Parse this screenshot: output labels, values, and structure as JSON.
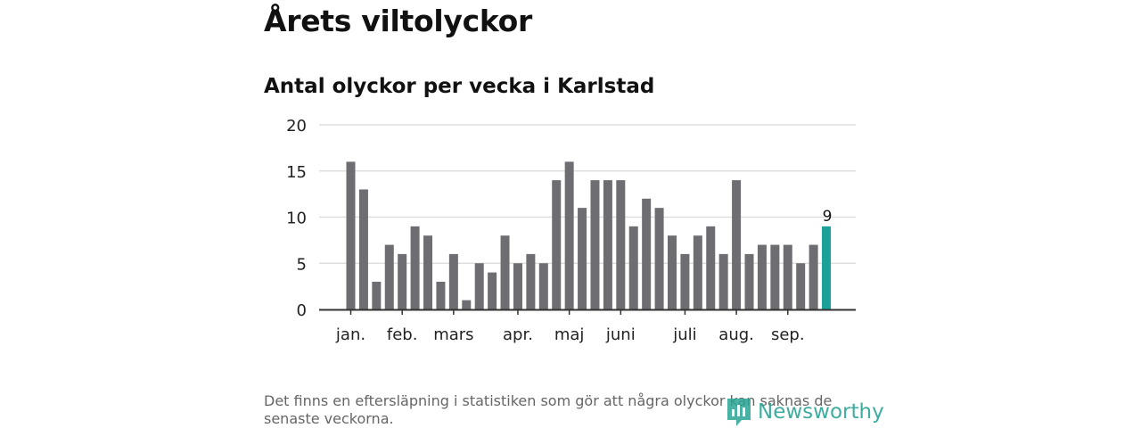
{
  "title": "Årets viltolyckor",
  "subtitle": "Antal olyckor per vecka i Karlstad",
  "footnote": "Det finns en eftersläpning i statistiken som gör att några olyckor kan saknas de senaste veckorna.",
  "logo_text": "Newsworthy",
  "colors": {
    "bar": "#6e6d72",
    "highlight": "#1aa198",
    "grid": "#d9d9d9",
    "axis": "#333333",
    "logo": "#2aa595"
  },
  "chart_data": {
    "type": "bar",
    "values": [
      16,
      13,
      3,
      7,
      6,
      9,
      8,
      3,
      6,
      1,
      5,
      4,
      8,
      5,
      6,
      5,
      14,
      16,
      11,
      14,
      14,
      14,
      9,
      12,
      11,
      8,
      6,
      8,
      9,
      6,
      14,
      6,
      7,
      7,
      7,
      5,
      7,
      9
    ],
    "highlight_last": true,
    "last_value_label": "9",
    "ylim": [
      0,
      20
    ],
    "yticks": [
      0,
      5,
      10,
      15,
      20
    ],
    "month_ticks": [
      {
        "label": "jan.",
        "bar_index": 0
      },
      {
        "label": "feb.",
        "bar_index": 4
      },
      {
        "label": "mars",
        "bar_index": 8
      },
      {
        "label": "apr.",
        "bar_index": 13
      },
      {
        "label": "maj",
        "bar_index": 17
      },
      {
        "label": "juni",
        "bar_index": 21
      },
      {
        "label": "juli",
        "bar_index": 26
      },
      {
        "label": "aug.",
        "bar_index": 30
      },
      {
        "label": "sep.",
        "bar_index": 34
      }
    ],
    "grid": true,
    "xlabel": "",
    "ylabel": ""
  }
}
